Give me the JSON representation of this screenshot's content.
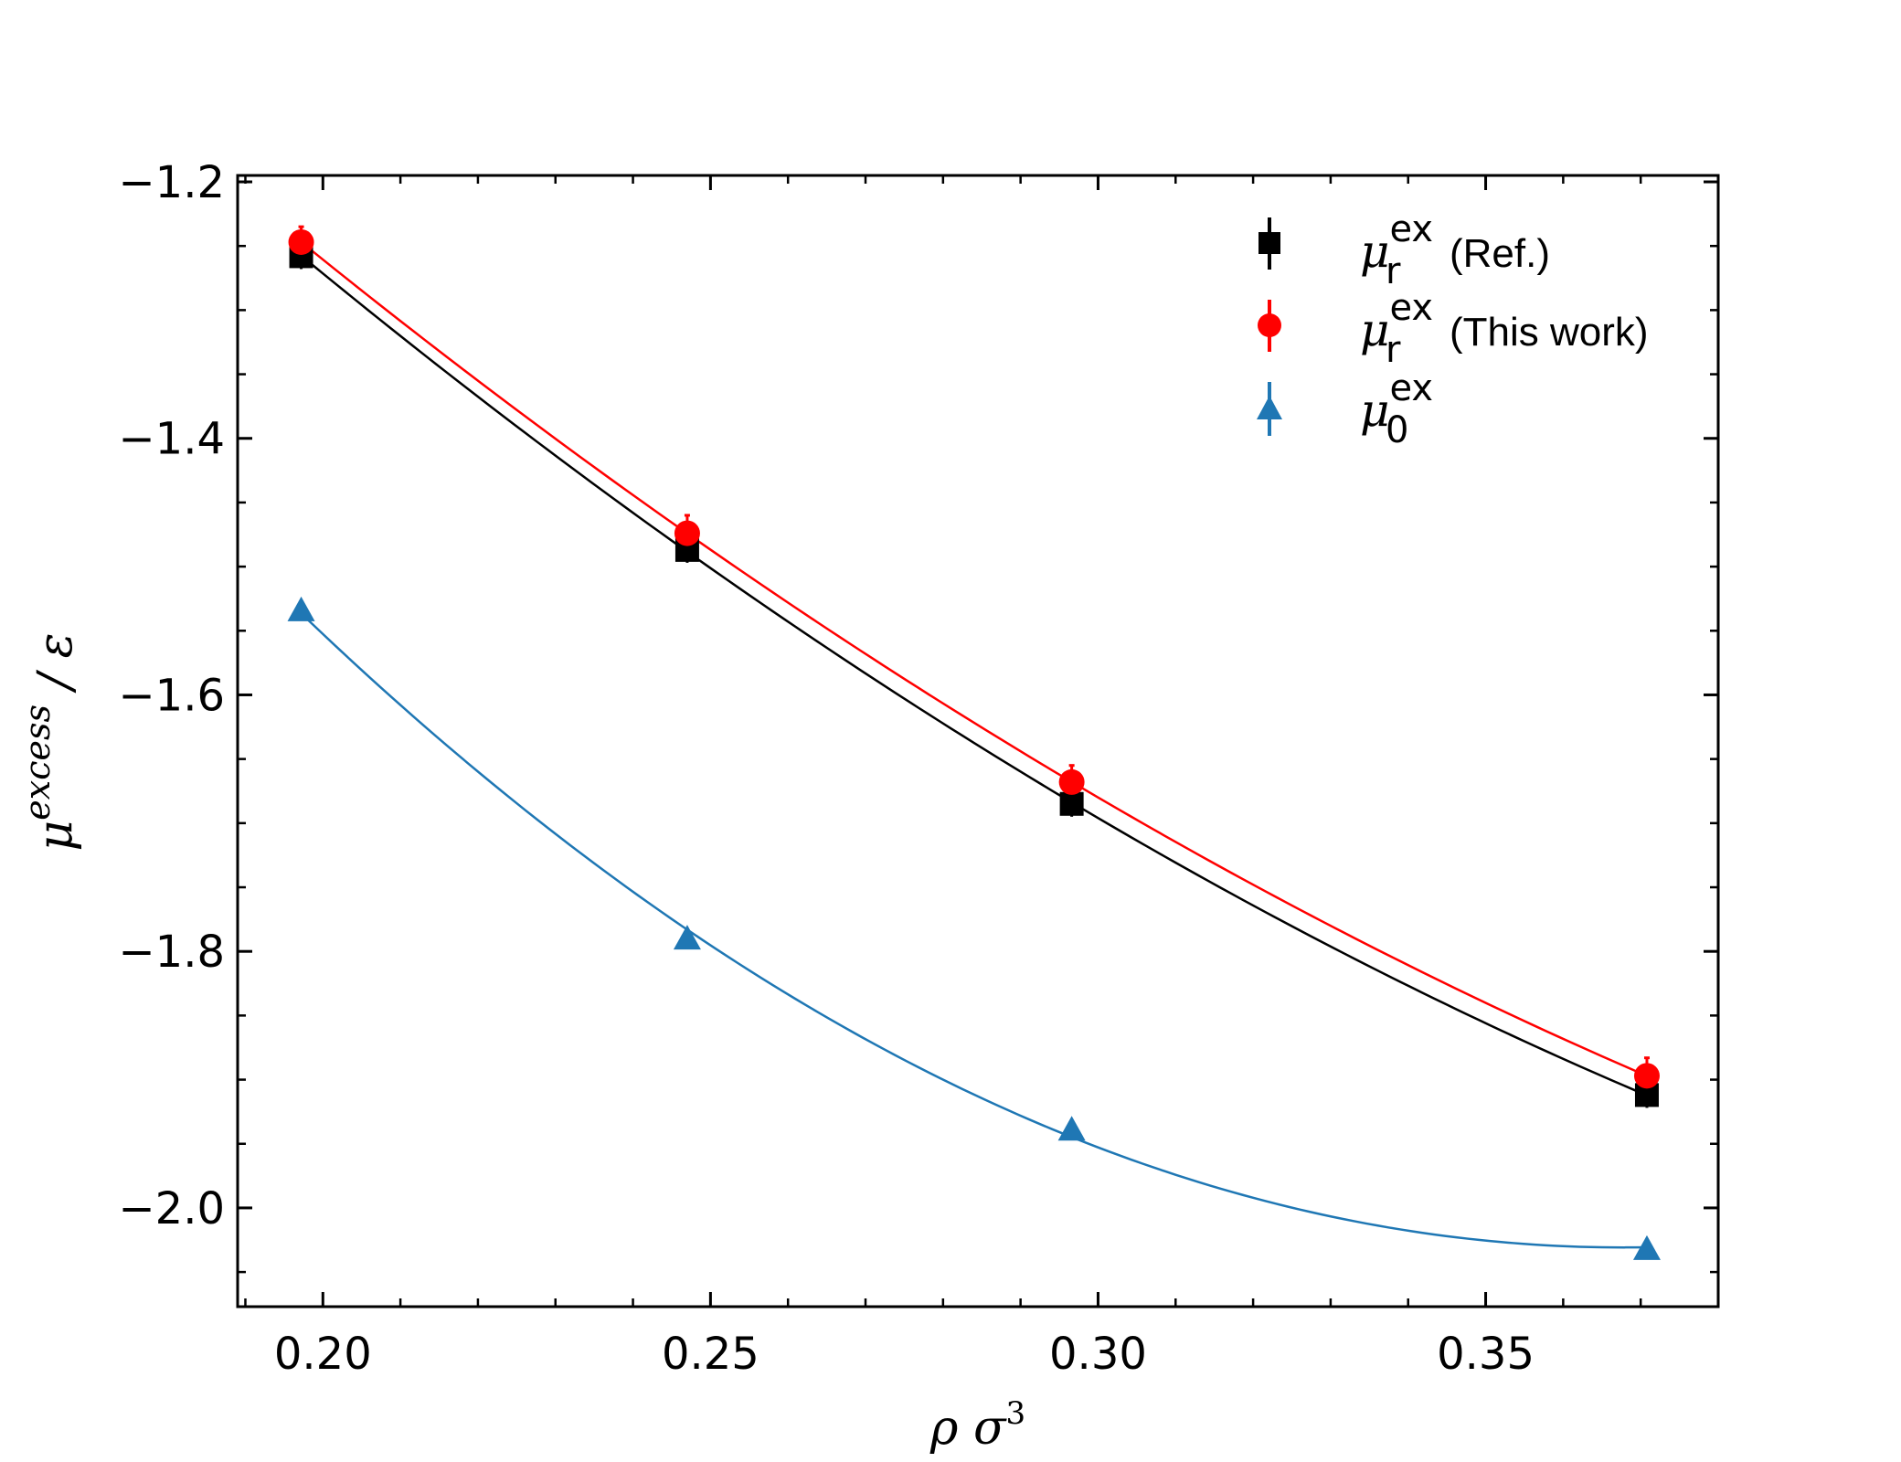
{
  "chart_data": {
    "type": "scatter",
    "title": "",
    "xlabel": "ρ σ",
    "xlabel_sup": "3",
    "ylabel_main": "μ",
    "ylabel_sup": "excess",
    "ylabel_tail": " / ε",
    "xlim": [
      0.189,
      0.38
    ],
    "ylim": [
      -2.077,
      -1.195
    ],
    "xticks": [
      {
        "value": 0.2,
        "label": "0.20"
      },
      {
        "value": 0.25,
        "label": "0.25"
      },
      {
        "value": 0.3,
        "label": "0.30"
      },
      {
        "value": 0.35,
        "label": "0.35"
      }
    ],
    "yticks": [
      {
        "value": -1.2,
        "label": "−1.2"
      },
      {
        "value": -1.4,
        "label": "−1.4"
      },
      {
        "value": -1.6,
        "label": "−1.6"
      },
      {
        "value": -1.8,
        "label": "−1.8"
      },
      {
        "value": -2.0,
        "label": "−2.0"
      }
    ],
    "x": [
      0.1972,
      0.247,
      0.2966,
      0.3708
    ],
    "series": [
      {
        "name": "ref",
        "legend_main": "μ",
        "legend_sup": "ex",
        "legend_sub": "r",
        "legend_note": "(Ref.)",
        "color": "#000000",
        "marker": "square",
        "values": [
          -1.258,
          -1.487,
          -1.685,
          -1.912
        ],
        "errors": [
          0.01,
          0.01,
          0.01,
          0.01
        ]
      },
      {
        "name": "this-work",
        "legend_main": "μ",
        "legend_sup": "ex",
        "legend_sub": "r",
        "legend_note": "(This work)",
        "color": "#ff0000",
        "marker": "circle",
        "values": [
          -1.247,
          -1.474,
          -1.668,
          -1.897
        ],
        "errors": [
          0.012,
          0.014,
          0.013,
          0.014
        ]
      },
      {
        "name": "mu0",
        "legend_main": "μ",
        "legend_sup": "ex",
        "legend_sub": "0",
        "legend_note": "",
        "color": "#1f77b4",
        "marker": "triangle",
        "values": [
          -1.534,
          -1.79,
          -1.939,
          -2.032
        ],
        "errors": [
          0.004,
          0.004,
          0.004,
          0.004
        ]
      }
    ],
    "legend_position": "top-right",
    "grid": false
  }
}
